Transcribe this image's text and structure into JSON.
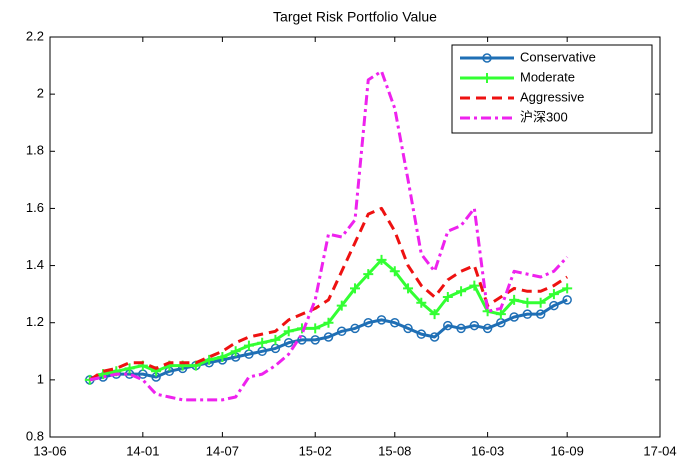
{
  "chart_data": {
    "type": "line",
    "title": "Target Risk Portfolio Value",
    "x": [
      3,
      4,
      5,
      6,
      7,
      8,
      9,
      10,
      11,
      12,
      13,
      14,
      15,
      16,
      17,
      18,
      19,
      20,
      21,
      22,
      23,
      24,
      25,
      26,
      27,
      28,
      29,
      30,
      31,
      32,
      33,
      34,
      35,
      36,
      37,
      38,
      39
    ],
    "series": [
      {
        "name": "Conservative",
        "color": "#1f6fb5",
        "marker": "circle",
        "dash": "solid",
        "values": [
          1.0,
          1.01,
          1.02,
          1.02,
          1.02,
          1.01,
          1.03,
          1.04,
          1.05,
          1.06,
          1.07,
          1.08,
          1.09,
          1.1,
          1.11,
          1.13,
          1.14,
          1.14,
          1.15,
          1.17,
          1.18,
          1.2,
          1.21,
          1.2,
          1.18,
          1.16,
          1.15,
          1.19,
          1.18,
          1.19,
          1.18,
          1.2,
          1.22,
          1.23,
          1.23,
          1.26,
          1.28
        ]
      },
      {
        "name": "Moderate",
        "color": "#33ff33",
        "marker": "plus",
        "dash": "solid",
        "values": [
          1.0,
          1.02,
          1.03,
          1.04,
          1.05,
          1.03,
          1.05,
          1.05,
          1.05,
          1.07,
          1.08,
          1.1,
          1.12,
          1.13,
          1.14,
          1.17,
          1.18,
          1.18,
          1.2,
          1.26,
          1.32,
          1.37,
          1.42,
          1.38,
          1.32,
          1.27,
          1.23,
          1.29,
          1.31,
          1.33,
          1.24,
          1.23,
          1.28,
          1.27,
          1.27,
          1.3,
          1.32
        ]
      },
      {
        "name": "Aggressive",
        "color": "#ee1111",
        "marker": "none",
        "dash": "dashed",
        "values": [
          1.0,
          1.03,
          1.04,
          1.06,
          1.06,
          1.04,
          1.06,
          1.06,
          1.06,
          1.08,
          1.1,
          1.13,
          1.15,
          1.16,
          1.17,
          1.21,
          1.23,
          1.25,
          1.28,
          1.38,
          1.48,
          1.58,
          1.6,
          1.52,
          1.4,
          1.33,
          1.29,
          1.35,
          1.38,
          1.4,
          1.26,
          1.29,
          1.32,
          1.31,
          1.31,
          1.33,
          1.36
        ]
      },
      {
        "name": "沪深300",
        "color": "#ee22ee",
        "marker": "none",
        "dash": "dashdot",
        "values": [
          1.0,
          1.01,
          1.02,
          1.02,
          1.0,
          0.95,
          0.94,
          0.93,
          0.93,
          0.93,
          0.93,
          0.94,
          1.01,
          1.02,
          1.05,
          1.09,
          1.16,
          1.28,
          1.51,
          1.5,
          1.56,
          2.05,
          2.08,
          1.95,
          1.7,
          1.44,
          1.38,
          1.52,
          1.54,
          1.6,
          1.24,
          1.25,
          1.38,
          1.37,
          1.36,
          1.38,
          1.43
        ]
      }
    ],
    "xlim": [
      0,
      46
    ],
    "xticks": [
      {
        "value": 0,
        "label": "13-06"
      },
      {
        "value": 7,
        "label": "14-01"
      },
      {
        "value": 13,
        "label": "14-07"
      },
      {
        "value": 20,
        "label": "15-02"
      },
      {
        "value": 26,
        "label": "15-08"
      },
      {
        "value": 33,
        "label": "16-03"
      },
      {
        "value": 39,
        "label": "16-09"
      },
      {
        "value": 46,
        "label": "17-04"
      }
    ],
    "ylim": [
      0.8,
      2.2
    ],
    "yticks": [
      0.8,
      1,
      1.2,
      1.4,
      1.6,
      1.8,
      2,
      2.2
    ],
    "legend": "top-right",
    "grid": false
  }
}
